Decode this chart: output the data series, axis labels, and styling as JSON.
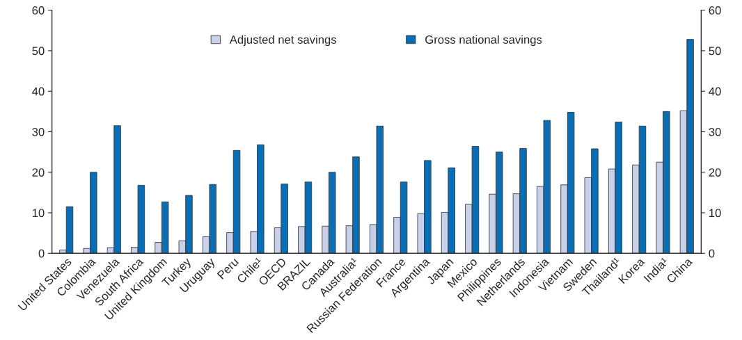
{
  "chart_data": {
    "type": "bar",
    "categories": [
      "United States",
      "Colombia",
      "Venezuela",
      "South Africa",
      "United Kingdom",
      "Turkey",
      "Uruguay",
      "Peru",
      "Chile¹",
      "OECD",
      "BRAZIL",
      "Canada",
      "Australia¹",
      "Russian Federation",
      "France",
      "Argentina",
      "Japan",
      "Mexico",
      "Philippines",
      "Netherlands",
      "Indonesia",
      "Vietnam",
      "Sweden",
      "Thailand¹",
      "Korea",
      "India¹",
      "China"
    ],
    "series": [
      {
        "name": "Adjusted net savings",
        "color": "#c9d1ea",
        "values": [
          0.8,
          1.2,
          1.4,
          1.5,
          2.7,
          3.1,
          4.1,
          5.1,
          5.4,
          6.3,
          6.6,
          6.7,
          6.8,
          7.1,
          8.9,
          9.8,
          10.1,
          12.1,
          14.6,
          14.7,
          16.5,
          16.9,
          18.7,
          20.8,
          21.8,
          22.5,
          35.2
        ]
      },
      {
        "name": "Gross national savings",
        "color": "#0a6eb4",
        "values": [
          11.5,
          20.0,
          31.5,
          16.8,
          12.7,
          14.3,
          17.0,
          25.4,
          26.8,
          17.1,
          17.6,
          20.0,
          23.8,
          31.4,
          17.6,
          22.9,
          21.1,
          26.4,
          25.0,
          25.9,
          32.8,
          34.8,
          25.8,
          32.4,
          31.4,
          35.0,
          52.8
        ]
      }
    ],
    "ylim": [
      0,
      60
    ],
    "yticks": [
      0,
      10,
      20,
      30,
      40,
      50,
      60
    ],
    "y2lim": [
      0,
      60
    ],
    "y2ticks": [
      0,
      10,
      20,
      30,
      40,
      50,
      60
    ],
    "grid": false,
    "legend": "top"
  }
}
